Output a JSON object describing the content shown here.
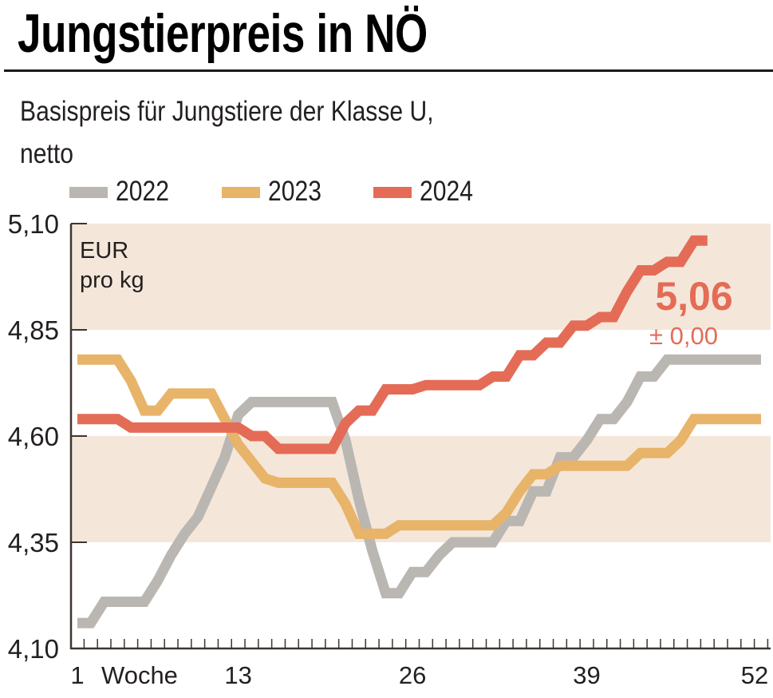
{
  "header": {
    "title": "Jungstierpreis in NÖ",
    "subtitle_line1": "Basispreis für Jungstiere der Klasse U,",
    "subtitle_line2": "netto"
  },
  "legend": [
    {
      "label": "2022",
      "color": "#bab6b2"
    },
    {
      "label": "2023",
      "color": "#e8b46a"
    },
    {
      "label": "2024",
      "color": "#e46c56"
    }
  ],
  "annotation": {
    "value": "5,06",
    "change": "± 0,00",
    "color": "#e46c56"
  },
  "colors": {
    "band": "#f4e7da",
    "axis": "#3d3530",
    "text": "#231f20"
  },
  "chart_data": {
    "type": "line",
    "title": "Jungstierpreis in NÖ",
    "subtitle": "Basispreis für Jungstiere der Klasse U, netto",
    "unit_label": [
      "EUR",
      "pro kg"
    ],
    "xlabel": "Woche",
    "ylabel": "EUR pro kg",
    "xlim": [
      1,
      52
    ],
    "ylim": [
      4.1,
      5.1
    ],
    "x_tick_labels": [
      "1",
      "13",
      "26",
      "39",
      "52"
    ],
    "x_tick_values": [
      1,
      13,
      26,
      39,
      52
    ],
    "y_tick_labels": [
      "4,10",
      "4,35",
      "4,60",
      "4,85",
      "5,10"
    ],
    "y_tick_values": [
      4.1,
      4.35,
      4.6,
      4.85,
      5.1
    ],
    "bands": [
      [
        4.35,
        4.6
      ],
      [
        4.85,
        5.1
      ]
    ],
    "legend_position": "top-left",
    "grid": false,
    "series": [
      {
        "name": "2022",
        "color": "#bab6b2",
        "x": [
          1,
          2,
          3,
          4,
          5,
          6,
          7,
          8,
          9,
          10,
          11,
          12,
          13,
          14,
          15,
          16,
          17,
          18,
          19,
          20,
          21,
          22,
          23,
          24,
          25,
          26,
          27,
          28,
          29,
          30,
          31,
          32,
          33,
          34,
          35,
          36,
          37,
          38,
          39,
          40,
          41,
          42,
          43,
          44,
          45,
          46,
          47,
          48,
          49,
          50,
          51,
          52
        ],
        "values": [
          4.16,
          4.16,
          4.21,
          4.21,
          4.21,
          4.21,
          4.26,
          4.32,
          4.37,
          4.41,
          4.48,
          4.55,
          4.65,
          4.68,
          4.68,
          4.68,
          4.68,
          4.68,
          4.68,
          4.68,
          4.59,
          4.45,
          4.33,
          4.23,
          4.23,
          4.28,
          4.28,
          4.32,
          4.35,
          4.35,
          4.35,
          4.35,
          4.4,
          4.4,
          4.47,
          4.47,
          4.55,
          4.55,
          4.59,
          4.64,
          4.64,
          4.68,
          4.74,
          4.74,
          4.78,
          4.78,
          4.78,
          4.78,
          4.78,
          4.78,
          4.78,
          4.78
        ]
      },
      {
        "name": "2023",
        "color": "#e8b46a",
        "x": [
          1,
          2,
          3,
          4,
          5,
          6,
          7,
          8,
          9,
          10,
          11,
          12,
          13,
          14,
          15,
          16,
          17,
          18,
          19,
          20,
          21,
          22,
          23,
          24,
          25,
          26,
          27,
          28,
          29,
          30,
          31,
          32,
          33,
          34,
          35,
          36,
          37,
          38,
          39,
          40,
          41,
          42,
          43,
          44,
          45,
          46,
          47,
          48,
          49,
          50,
          51,
          52
        ],
        "values": [
          4.78,
          4.78,
          4.78,
          4.78,
          4.73,
          4.66,
          4.66,
          4.7,
          4.7,
          4.7,
          4.7,
          4.64,
          4.58,
          4.54,
          4.5,
          4.49,
          4.49,
          4.49,
          4.49,
          4.49,
          4.44,
          4.37,
          4.37,
          4.37,
          4.39,
          4.39,
          4.39,
          4.39,
          4.39,
          4.39,
          4.39,
          4.39,
          4.42,
          4.47,
          4.51,
          4.51,
          4.53,
          4.53,
          4.53,
          4.53,
          4.53,
          4.53,
          4.56,
          4.56,
          4.56,
          4.59,
          4.64,
          4.64,
          4.64,
          4.64,
          4.64,
          4.64
        ]
      },
      {
        "name": "2024",
        "color": "#e46c56",
        "x": [
          1,
          2,
          3,
          4,
          5,
          6,
          7,
          8,
          9,
          10,
          11,
          12,
          13,
          14,
          15,
          16,
          17,
          18,
          19,
          20,
          21,
          22,
          23,
          24,
          25,
          26,
          27,
          28,
          29,
          30,
          31,
          32,
          33,
          34,
          35,
          36,
          37,
          38,
          39,
          40,
          41,
          42,
          43,
          44,
          45,
          46,
          47,
          48
        ],
        "values": [
          4.64,
          4.64,
          4.64,
          4.64,
          4.62,
          4.62,
          4.62,
          4.62,
          4.62,
          4.62,
          4.62,
          4.62,
          4.62,
          4.6,
          4.6,
          4.57,
          4.57,
          4.57,
          4.57,
          4.57,
          4.63,
          4.66,
          4.66,
          4.71,
          4.71,
          4.71,
          4.72,
          4.72,
          4.72,
          4.72,
          4.72,
          4.74,
          4.74,
          4.79,
          4.79,
          4.82,
          4.82,
          4.86,
          4.86,
          4.88,
          4.88,
          4.94,
          4.99,
          4.99,
          5.01,
          5.01,
          5.06,
          5.06
        ]
      }
    ]
  }
}
